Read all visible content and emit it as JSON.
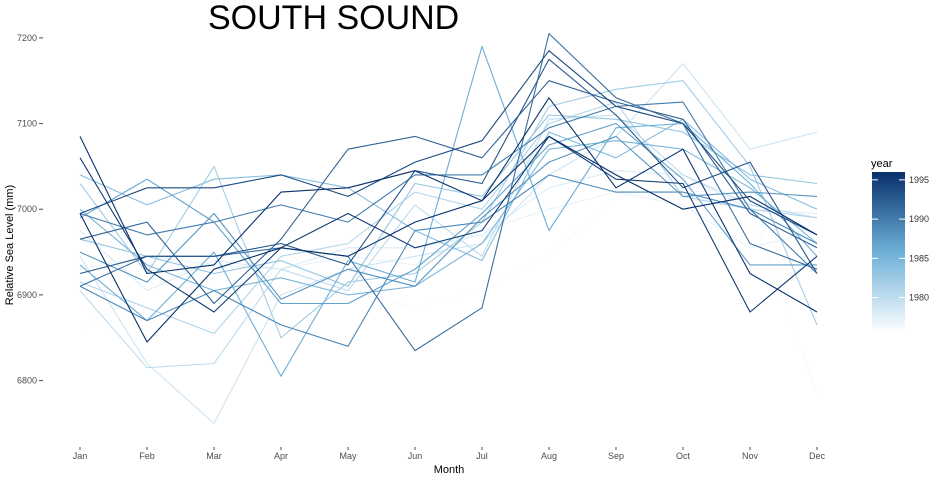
{
  "chart_data": {
    "type": "line",
    "title": "SOUTH SOUND",
    "xlabel": "Month",
    "ylabel": "Relative Sea Level (mm)",
    "categories": [
      "Jan",
      "Feb",
      "Mar",
      "Apr",
      "May",
      "Jun",
      "Jul",
      "Aug",
      "Sep",
      "Oct",
      "Nov",
      "Dec"
    ],
    "yticks": [
      6800,
      6900,
      7000,
      7100,
      7200
    ],
    "ylim": [
      6740,
      7215
    ],
    "grid": false,
    "legend": {
      "title": "year",
      "position": "right",
      "ticks": [
        1980,
        1985,
        1990,
        1995
      ],
      "range": [
        1976,
        1996
      ],
      "color_low": "#f7fbff",
      "color_high": "#08306b"
    },
    "series": [
      {
        "year": 1976,
        "values": [
          6860,
          6905,
          6945,
          6940,
          6905,
          6885,
          6905,
          6945,
          7015,
          7020,
          7005,
          6785
        ]
      },
      {
        "year": 1977,
        "values": [
          6930,
          6945,
          6935,
          6930,
          6945,
          6935,
          6975,
          7000,
          7020,
          7005,
          6955,
          6975
        ]
      },
      {
        "year": 1978,
        "values": [
          6975,
          6905,
          6940,
          6930,
          6955,
          6955,
          6970,
          7025,
          7045,
          7040,
          7000,
          6995
        ]
      },
      {
        "year": 1979,
        "values": [
          6945,
          6820,
          6750,
          6900,
          6930,
          6945,
          6960,
          7040,
          7085,
          7170,
          7070,
          7090
        ]
      },
      {
        "year": 1980,
        "values": [
          6905,
          6815,
          6820,
          6930,
          6905,
          7005,
          6945,
          7105,
          7110,
          7040,
          7005,
          6990
        ]
      },
      {
        "year": 1981,
        "values": [
          6915,
          6885,
          6855,
          6945,
          6960,
          7020,
          7000,
          7100,
          7125,
          7015,
          7000,
          6990
        ]
      },
      {
        "year": 1982,
        "values": [
          7030,
          6925,
          7050,
          6850,
          6915,
          6925,
          6985,
          7120,
          7140,
          7150,
          7050,
          6865
        ]
      },
      {
        "year": 1983,
        "values": [
          6965,
          6945,
          6925,
          6940,
          6910,
          7030,
          7015,
          7110,
          7105,
          7090,
          7040,
          7030
        ]
      },
      {
        "year": 1984,
        "values": [
          7040,
          7005,
          7035,
          7040,
          7025,
          6975,
          6940,
          7090,
          7060,
          7105,
          7035,
          7000
        ]
      },
      {
        "year": 1985,
        "values": [
          7000,
          6935,
          6905,
          6920,
          6900,
          6910,
          6960,
          7070,
          7080,
          7070,
          7025,
          6960
        ]
      },
      {
        "year": 1986,
        "values": [
          6935,
          6870,
          6950,
          6805,
          6940,
          6915,
          7190,
          6975,
          7095,
          7100,
          7030,
          6945
        ]
      },
      {
        "year": 1987,
        "values": [
          6990,
          7035,
          6985,
          6890,
          6890,
          6930,
          6995,
          7075,
          7100,
          7035,
          6935,
          6935
        ]
      },
      {
        "year": 1988,
        "values": [
          6950,
          6915,
          6995,
          6895,
          6930,
          6910,
          6990,
          7055,
          7085,
          7015,
          7020,
          7015
        ]
      },
      {
        "year": 1989,
        "values": [
          6910,
          6870,
          6905,
          6865,
          6840,
          6975,
          6985,
          7040,
          7020,
          7020,
          7000,
          6960
        ]
      },
      {
        "year": 1990,
        "values": [
          6995,
          6970,
          6985,
          7005,
          6985,
          7040,
          7040,
          7095,
          7120,
          7125,
          7000,
          6925
        ]
      },
      {
        "year": 1991,
        "values": [
          6910,
          6945,
          6945,
          6955,
          6945,
          6835,
          6885,
          7205,
          7130,
          7100,
          6960,
          6930
        ]
      },
      {
        "year": 1992,
        "values": [
          6965,
          6985,
          6890,
          6965,
          7070,
          7085,
          7060,
          7150,
          7125,
          7105,
          6995,
          6955
        ]
      },
      {
        "year": 1993,
        "values": [
          6925,
          6945,
          6945,
          6960,
          6935,
          7045,
          7030,
          7175,
          7110,
          7025,
          7055,
          6925
        ]
      },
      {
        "year": 1994,
        "values": [
          6995,
          7025,
          7025,
          7040,
          7015,
          7055,
          7080,
          7185,
          7120,
          7100,
          7010,
          6970
        ]
      },
      {
        "year": 1995,
        "values": [
          7060,
          6930,
          6880,
          6955,
          6995,
          6955,
          6975,
          7085,
          7035,
          7030,
          6880,
          6945
        ]
      },
      {
        "year": 1996,
        "values": [
          7085,
          6925,
          6935,
          7020,
          7025,
          7045,
          7010,
          7130,
          7025,
          7070,
          6925,
          6880
        ]
      },
      {
        "year": 1996,
        "values": [
          6995,
          6845,
          6930,
          6955,
          6945,
          6985,
          7010,
          7085,
          7040,
          7000,
          7015,
          6970
        ]
      }
    ]
  }
}
